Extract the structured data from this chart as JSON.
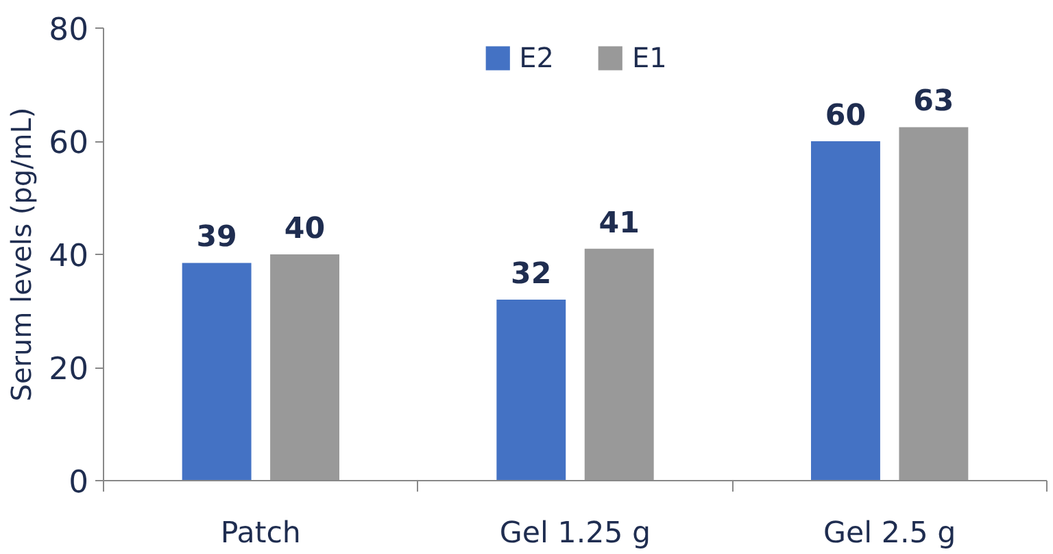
{
  "chart_data": {
    "type": "bar",
    "ylabel": "Serum levels (pg/mL)",
    "categories": [
      "Patch",
      "Gel 1.25 g",
      "Gel 2.5 g"
    ],
    "series": [
      {
        "name": "E2",
        "color": "#4472c4",
        "values": [
          38.5,
          32,
          60
        ],
        "value_labels": [
          "39",
          "32",
          "60"
        ]
      },
      {
        "name": "E1",
        "color": "#999999",
        "values": [
          40,
          41,
          62.5
        ],
        "value_labels": [
          "40",
          "41",
          "63"
        ]
      }
    ],
    "ylim": [
      0,
      80
    ],
    "yticks": [
      0,
      20,
      40,
      60,
      80
    ],
    "grid": false,
    "legend": "top"
  }
}
